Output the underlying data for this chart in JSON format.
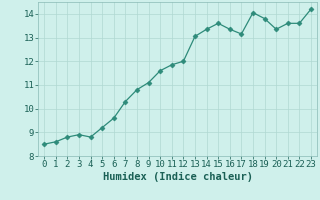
{
  "title": "",
  "xlabel": "Humidex (Indice chaleur)",
  "ylabel": "",
  "x": [
    0,
    1,
    2,
    3,
    4,
    5,
    6,
    7,
    8,
    9,
    10,
    11,
    12,
    13,
    14,
    15,
    16,
    17,
    18,
    19,
    20,
    21,
    22,
    23
  ],
  "y": [
    8.5,
    8.6,
    8.8,
    8.9,
    8.8,
    9.2,
    9.6,
    10.3,
    10.8,
    11.1,
    11.6,
    11.85,
    12.0,
    13.05,
    13.35,
    13.6,
    13.35,
    13.15,
    14.05,
    13.8,
    13.35,
    13.6,
    13.6,
    14.2
  ],
  "line_color": "#2e8b7a",
  "marker": "D",
  "marker_size": 2.5,
  "bg_color": "#cff0eb",
  "grid_color": "#b0d8d2",
  "tick_label_color": "#1a6055",
  "ylim": [
    8,
    14.5
  ],
  "yticks": [
    8,
    9,
    10,
    11,
    12,
    13,
    14
  ],
  "xticks": [
    0,
    1,
    2,
    3,
    4,
    5,
    6,
    7,
    8,
    9,
    10,
    11,
    12,
    13,
    14,
    15,
    16,
    17,
    18,
    19,
    20,
    21,
    22,
    23
  ],
  "xlabel_fontsize": 7.5,
  "tick_fontsize": 6.5
}
